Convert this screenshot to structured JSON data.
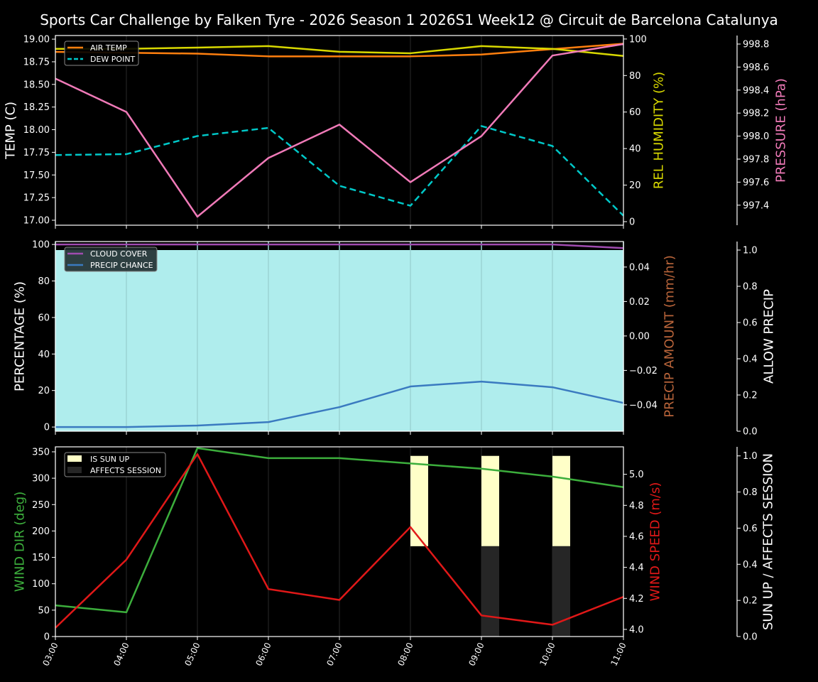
{
  "title": "Sports Car Challenge by Falken Tyre - 2026 Season 1 2026S1 Week12 @ Circuit de Barcelona Catalunya",
  "colors": {
    "background": "#000000",
    "air_temp": "#ff7f0e",
    "rel_humidity": "#d8d800",
    "dew_point": "#00c8c8",
    "pressure": "#f07ab8",
    "cloud_cover": "#a04cb0",
    "precip_chance": "#3a7ac0",
    "allow_precip_fill": "#afeded",
    "precip_amount_label": "#b8643a",
    "wind_dir": "#3cae3c",
    "wind_speed": "#e01818",
    "is_sun_up": "#ffffc8",
    "affects_session": "#262626"
  },
  "chart_data": [
    {
      "type": "line",
      "panel": "weather-temperature",
      "x": [
        "03:00",
        "04:00",
        "05:00",
        "06:00",
        "07:00",
        "08:00",
        "09:00",
        "10:00",
        "11:00"
      ],
      "grid": true,
      "legend": "top-left",
      "axes": {
        "left": {
          "label": "TEMP (C)",
          "ylim": [
            16.945,
            19.04
          ],
          "ticks": [
            "17.00",
            "17.25",
            "17.50",
            "17.75",
            "18.00",
            "18.25",
            "18.50",
            "18.75",
            "19.00"
          ]
        },
        "right": {
          "label": "REL HUMIDITY (%)",
          "ylim": [
            -1.95,
            101.9
          ],
          "ticks": [
            "0",
            "20",
            "40",
            "60",
            "80",
            "100"
          ]
        },
        "right2": {
          "label": "PRESSURE (hPa)",
          "ylim": [
            997.226,
            998.874
          ],
          "ticks": [
            "997.4",
            "997.6",
            "997.8",
            "998.0",
            "998.2",
            "998.4",
            "998.6",
            "998.8"
          ]
        }
      },
      "series": [
        {
          "name": "AIR TEMP",
          "axis": "left",
          "values": [
            18.86,
            18.85,
            18.84,
            18.81,
            18.81,
            18.81,
            18.83,
            18.89,
            18.95
          ]
        },
        {
          "name": "DEW POINT",
          "axis": "left",
          "dashed": true,
          "values": [
            17.72,
            17.73,
            17.93,
            18.02,
            17.38,
            17.16,
            18.04,
            17.82,
            17.05
          ]
        },
        {
          "axis": "right",
          "values": [
            94.6,
            94.6,
            95.3,
            96.1,
            93.0,
            92.2,
            96.1,
            94.6,
            90.7
          ]
        },
        {
          "axis": "right2",
          "values": [
            998.5,
            998.21,
            997.3,
            997.81,
            998.1,
            997.6,
            998.0,
            998.7,
            998.8
          ]
        }
      ]
    },
    {
      "type": "line",
      "panel": "weather-precipitation",
      "x": [
        "03:00",
        "04:00",
        "05:00",
        "06:00",
        "07:00",
        "08:00",
        "09:00",
        "10:00",
        "11:00"
      ],
      "grid": true,
      "legend": "top-left",
      "axes": {
        "left": {
          "label": "PERCENTAGE (%)",
          "ylim": [
            -2.3,
            101.6
          ],
          "ticks": [
            "0",
            "20",
            "40",
            "60",
            "80",
            "100"
          ]
        },
        "right": {
          "label": "PRECIP AMOUNT (mm/hr)",
          "ylim": [
            -0.0553,
            0.0548
          ],
          "ticks": [
            "−0.04",
            "−0.02",
            "0.00",
            "0.02",
            "0.04"
          ]
        },
        "right2": {
          "label": "ALLOW PRECIP",
          "ylim": [
            0,
            1.047
          ],
          "ticks": [
            "0.0",
            "0.2",
            "0.4",
            "0.6",
            "0.8",
            "1.0"
          ]
        }
      },
      "series": [
        {
          "name": "CLOUD COVER",
          "axis": "left",
          "values": [
            100,
            100,
            100,
            100,
            100,
            100,
            100,
            100,
            98
          ]
        },
        {
          "name": "PRECIP CHANCE",
          "axis": "left",
          "values": [
            0,
            0,
            0.8,
            2.7,
            10.9,
            22.2,
            24.9,
            21.8,
            13.2
          ]
        },
        {
          "axis": "right2",
          "fill": true,
          "values": [
            1,
            1,
            1,
            1,
            1,
            1,
            1,
            1,
            1
          ]
        }
      ]
    },
    {
      "type": "line",
      "panel": "weather-wind",
      "x": [
        "03:00",
        "04:00",
        "05:00",
        "06:00",
        "07:00",
        "08:00",
        "09:00",
        "10:00",
        "11:00"
      ],
      "grid": true,
      "legend": "top-left",
      "axes": {
        "left": {
          "label": "WIND DIR (deg)",
          "ylim": [
            0,
            359.4
          ],
          "ticks": [
            "0",
            "50",
            "100",
            "150",
            "200",
            "250",
            "300",
            "350"
          ]
        },
        "right": {
          "label": "WIND SPEED (m/s)",
          "ylim": [
            3.954,
            5.177
          ],
          "ticks": [
            "4.0",
            "4.2",
            "4.4",
            "4.6",
            "4.8",
            "5.0"
          ]
        },
        "right2": {
          "label": "SUN UP / AFFECTS SESSION",
          "ylim": [
            0,
            1.05
          ],
          "ticks": [
            "0.0",
            "0.2",
            "0.4",
            "0.6",
            "0.8",
            "1.0"
          ]
        }
      },
      "series": [
        {
          "axis": "left",
          "values": [
            59,
            46,
            357,
            338,
            338,
            328,
            318,
            303,
            283
          ]
        },
        {
          "axis": "right",
          "values": [
            4.01,
            4.45,
            5.13,
            4.26,
            4.19,
            4.66,
            4.09,
            4.03,
            4.21
          ]
        }
      ],
      "bars": [
        {
          "name": "IS SUN UP",
          "axis": "right2",
          "values": [
            0,
            0,
            0,
            0,
            0,
            1,
            1,
            1,
            0
          ]
        },
        {
          "name": "AFFECTS SESSION",
          "axis": "right2",
          "values": [
            0,
            0,
            0,
            0,
            0,
            0,
            1,
            1,
            0
          ]
        }
      ]
    }
  ]
}
